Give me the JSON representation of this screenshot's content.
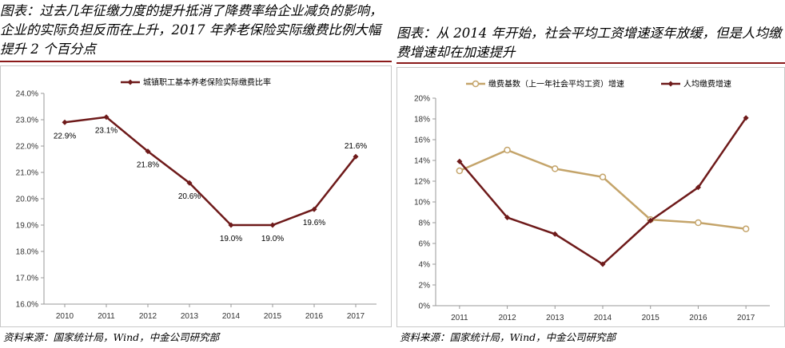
{
  "left": {
    "heading": "图表：过去几年征缴力度的提升抵消了降费率给企业减负的影响，企业的实际负担反而在上升，2017 年养老保险实际缴费比例大幅提升 2 个百分点",
    "source": "资料来源：国家统计局，Wind，中金公司研究部"
  },
  "right": {
    "heading": "图表：从 2014 年开始，社会平均工资增速逐年放缓，但是人均缴费增速却在加速提升",
    "source": "资料来源：国家统计局，Wind，中金公司研究部"
  },
  "colors": {
    "maroon": "#6e1a1a",
    "tan": "#c4a46a",
    "rule": "#8b1a1a"
  },
  "chart_data": [
    {
      "type": "line",
      "x": [
        "2010",
        "2011",
        "2012",
        "2013",
        "2014",
        "2015",
        "2016",
        "2017"
      ],
      "series": [
        {
          "name": "城镇职工基本养老保险实际缴费比率",
          "values": [
            22.9,
            23.1,
            21.8,
            20.6,
            19.0,
            19.0,
            19.6,
            21.6
          ],
          "labels": [
            "22.9%",
            "23.1%",
            "21.8%",
            "20.6%",
            "19.0%",
            "19.0%",
            "19.6%",
            "21.6%"
          ],
          "color": "#6e1a1a",
          "marker": "diamond"
        }
      ],
      "ylim": [
        16.0,
        24.0
      ],
      "yticks": [
        "16.0%",
        "17.0%",
        "18.0%",
        "19.0%",
        "20.0%",
        "21.0%",
        "22.0%",
        "23.0%",
        "24.0%"
      ],
      "legend": "top-center",
      "grid": false
    },
    {
      "type": "line",
      "x": [
        "2011",
        "2012",
        "2013",
        "2014",
        "2015",
        "2016",
        "2017"
      ],
      "series": [
        {
          "name": "缴费基数（上一年社会平均工资）增速",
          "values": [
            13.0,
            15.0,
            13.2,
            12.4,
            8.3,
            8.0,
            7.4
          ],
          "color": "#c4a46a",
          "marker": "circle"
        },
        {
          "name": "人均缴费增速",
          "values": [
            13.9,
            8.5,
            6.9,
            4.0,
            8.2,
            11.4,
            18.1
          ],
          "color": "#6e1a1a",
          "marker": "diamond"
        }
      ],
      "ylim": [
        0,
        20
      ],
      "yticks": [
        "0%",
        "2%",
        "4%",
        "6%",
        "8%",
        "10%",
        "12%",
        "14%",
        "16%",
        "18%",
        "20%"
      ],
      "legend": "top",
      "grid": false
    }
  ]
}
